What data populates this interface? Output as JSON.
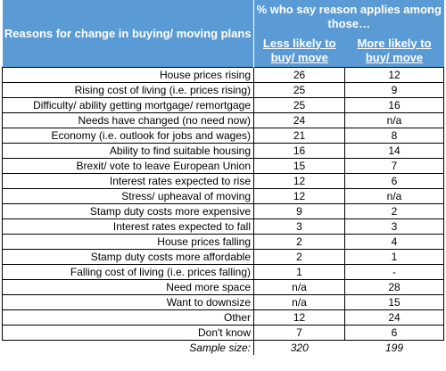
{
  "header": {
    "row_label_header": "Reasons for change in buying/ moving plans",
    "group_header": "% who say reason applies among those…",
    "col_less": "Less likely to buy/ move",
    "col_more": "More likely to buy/ move"
  },
  "rows": [
    {
      "label": "House prices rising",
      "less": "26",
      "more": "12"
    },
    {
      "label": "Rising cost of living (i.e. prices rising)",
      "less": "25",
      "more": "9"
    },
    {
      "label": "Difficulty/ ability getting mortgage/ remortgage",
      "less": "25",
      "more": "16"
    },
    {
      "label": "Needs have changed (no need now)",
      "less": "24",
      "more": "n/a"
    },
    {
      "label": "Economy (i.e. outlook for jobs and wages)",
      "less": "21",
      "more": "8"
    },
    {
      "label": "Ability to find suitable housing",
      "less": "16",
      "more": "14"
    },
    {
      "label": "Brexit/ vote to leave European Union",
      "less": "15",
      "more": "7"
    },
    {
      "label": "Interest rates expected to rise",
      "less": "12",
      "more": "6"
    },
    {
      "label": "Stress/ upheaval of moving",
      "less": "12",
      "more": "n/a"
    },
    {
      "label": "Stamp duty costs more expensive",
      "less": "9",
      "more": "2"
    },
    {
      "label": "Interest rates expected to fall",
      "less": "3",
      "more": "3"
    },
    {
      "label": "House prices falling",
      "less": "2",
      "more": "4"
    },
    {
      "label": "Stamp duty costs more affordable",
      "less": "2",
      "more": "1"
    },
    {
      "label": "Falling cost of living (i.e. prices falling)",
      "less": "1",
      "more": "-"
    },
    {
      "label": "Need more space",
      "less": "n/a",
      "more": "28"
    },
    {
      "label": "Want to downsize",
      "less": "n/a",
      "more": "15"
    },
    {
      "label": "Other",
      "less": "12",
      "more": "24"
    },
    {
      "label": "Don't know",
      "less": "7",
      "more": "6"
    }
  ],
  "sample": {
    "label": "Sample size:",
    "less": "320",
    "more": "199"
  },
  "colors": {
    "header_bg": "#5b9bd5",
    "header_text": "#ffffff"
  }
}
